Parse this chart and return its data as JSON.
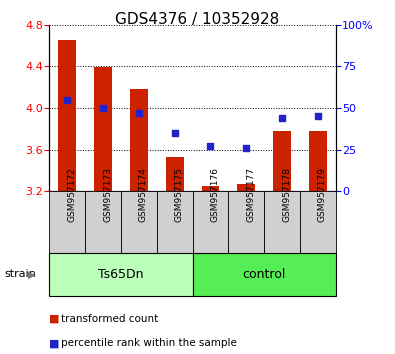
{
  "title": "GDS4376 / 10352928",
  "samples": [
    "GSM957172",
    "GSM957173",
    "GSM957174",
    "GSM957175",
    "GSM957176",
    "GSM957177",
    "GSM957178",
    "GSM957179"
  ],
  "bar_values": [
    4.65,
    4.39,
    4.18,
    3.53,
    3.25,
    3.27,
    3.78,
    3.78
  ],
  "percentile_values": [
    55,
    50,
    47,
    35,
    27,
    26,
    44,
    45
  ],
  "bar_baseline": 3.2,
  "ylim_left": [
    3.2,
    4.8
  ],
  "ylim_right": [
    0,
    100
  ],
  "yticks_left": [
    3.2,
    3.6,
    4.0,
    4.4,
    4.8
  ],
  "yticks_right": [
    0,
    25,
    50,
    75,
    100
  ],
  "ytick_labels_right": [
    "0",
    "25",
    "50",
    "75",
    "100%"
  ],
  "bar_color": "#cc2200",
  "dot_color": "#2222cc",
  "bg_color": "#ffffff",
  "group1_label": "Ts65Dn",
  "group2_label": "control",
  "group1_color": "#bbffbb",
  "group2_color": "#55ee55",
  "tick_area_color": "#cccccc",
  "legend_red_label": "transformed count",
  "legend_blue_label": "percentile rank within the sample",
  "strain_label": "strain",
  "title_fontsize": 11,
  "axis_fontsize": 8,
  "tick_label_fontsize": 6.5,
  "group_fontsize": 9,
  "legend_fontsize": 7.5
}
